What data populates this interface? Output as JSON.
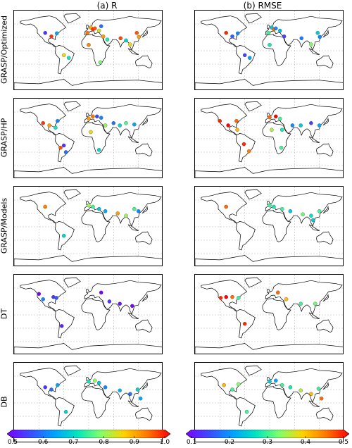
{
  "columns": [
    {
      "title": "(a) R"
    },
    {
      "title": "(b) RMSE"
    }
  ],
  "rows": [
    {
      "label": "GRASP/Optimized"
    },
    {
      "label": "GRASP/HP"
    },
    {
      "label": "GRASP/Models"
    },
    {
      "label": "DT"
    },
    {
      "label": "DB"
    }
  ],
  "colorbars": [
    {
      "name": "R",
      "ticks": [
        "0.5",
        "0.6",
        "0.7",
        "0.8",
        "0.9",
        "1.0"
      ],
      "min": 0.5,
      "max": 1.0,
      "colormap": [
        "#7a00ff",
        "#3b4cff",
        "#00a0ff",
        "#00e5c0",
        "#7fff6a",
        "#ffd200",
        "#ff7800",
        "#ff0000"
      ]
    },
    {
      "name": "RMSE",
      "ticks": [
        "0.1",
        "0.2",
        "0.3",
        "0.4",
        "0.5"
      ],
      "min": 0.1,
      "max": 0.5,
      "colormap": [
        "#7a00ff",
        "#3b4cff",
        "#00a0ff",
        "#00e5c0",
        "#7fff6a",
        "#ffd200",
        "#ff7800",
        "#ff0000"
      ]
    }
  ],
  "stations": {
    "optimized_R": [
      {
        "lon": -105,
        "lat": 40,
        "v": 0.55
      },
      {
        "lon": -90,
        "lat": 32,
        "v": 0.97
      },
      {
        "lon": -77,
        "lat": 39,
        "v": 0.65
      },
      {
        "lon": -48,
        "lat": -16,
        "v": 0.72
      },
      {
        "lon": -60,
        "lat": -10,
        "v": 0.85
      },
      {
        "lon": -3,
        "lat": 40,
        "v": 0.93
      },
      {
        "lon": 5,
        "lat": 52,
        "v": 0.88
      },
      {
        "lon": 10,
        "lat": 48,
        "v": 0.97
      },
      {
        "lon": 15,
        "lat": 50,
        "v": 0.95
      },
      {
        "lon": 25,
        "lat": 45,
        "v": 0.83
      },
      {
        "lon": 30,
        "lat": 55,
        "v": 0.6
      },
      {
        "lon": 35,
        "lat": 32,
        "v": 0.9
      },
      {
        "lon": 0,
        "lat": 13,
        "v": 0.92
      },
      {
        "lon": 45,
        "lat": 25,
        "v": 0.73
      },
      {
        "lon": 77,
        "lat": 28,
        "v": 0.96
      },
      {
        "lon": 90,
        "lat": 23,
        "v": 0.7
      },
      {
        "lon": 116,
        "lat": 40,
        "v": 0.95
      },
      {
        "lon": 121,
        "lat": 31,
        "v": 0.9
      },
      {
        "lon": 100,
        "lat": 14,
        "v": 0.85
      },
      {
        "lon": 28,
        "lat": -26,
        "v": 0.78
      }
    ],
    "optimized_RMSE": [
      {
        "lon": -105,
        "lat": 40,
        "v": 0.48
      },
      {
        "lon": -90,
        "lat": 32,
        "v": 0.17
      },
      {
        "lon": -77,
        "lat": 39,
        "v": 0.2
      },
      {
        "lon": -48,
        "lat": -16,
        "v": 0.22
      },
      {
        "lon": -60,
        "lat": -10,
        "v": 0.15
      },
      {
        "lon": -3,
        "lat": 40,
        "v": 0.3
      },
      {
        "lon": 5,
        "lat": 52,
        "v": 0.25
      },
      {
        "lon": 10,
        "lat": 48,
        "v": 0.45
      },
      {
        "lon": 15,
        "lat": 50,
        "v": 0.2
      },
      {
        "lon": 25,
        "lat": 45,
        "v": 0.24
      },
      {
        "lon": 35,
        "lat": 32,
        "v": 0.15
      },
      {
        "lon": 0,
        "lat": 13,
        "v": 0.28
      },
      {
        "lon": 77,
        "lat": 28,
        "v": 0.19
      },
      {
        "lon": 116,
        "lat": 40,
        "v": 0.25
      },
      {
        "lon": 121,
        "lat": 31,
        "v": 0.2
      },
      {
        "lon": 100,
        "lat": 14,
        "v": 0.33
      }
    ],
    "hp_R": [
      {
        "lon": -110,
        "lat": 35,
        "v": 0.97
      },
      {
        "lon": -95,
        "lat": 30,
        "v": 0.9
      },
      {
        "lon": -75,
        "lat": 40,
        "v": 0.62
      },
      {
        "lon": -80,
        "lat": 25,
        "v": 0.72
      },
      {
        "lon": -60,
        "lat": -15,
        "v": 0.55
      },
      {
        "lon": -55,
        "lat": -30,
        "v": 0.6
      },
      {
        "lon": -68,
        "lat": -20,
        "v": 0.95
      },
      {
        "lon": 0,
        "lat": 45,
        "v": 0.9
      },
      {
        "lon": 10,
        "lat": 50,
        "v": 0.93
      },
      {
        "lon": 20,
        "lat": 50,
        "v": 0.57
      },
      {
        "lon": 30,
        "lat": 47,
        "v": 0.62
      },
      {
        "lon": 5,
        "lat": 15,
        "v": 0.85
      },
      {
        "lon": 40,
        "lat": 30,
        "v": 0.8
      },
      {
        "lon": 60,
        "lat": 35,
        "v": 0.6
      },
      {
        "lon": 75,
        "lat": 30,
        "v": 0.7
      },
      {
        "lon": 90,
        "lat": 35,
        "v": 0.76
      },
      {
        "lon": 110,
        "lat": 32,
        "v": 0.65
      },
      {
        "lon": 25,
        "lat": -25,
        "v": 0.7
      }
    ],
    "hp_RMSE": [
      {
        "lon": -120,
        "lat": 40,
        "v": 0.48
      },
      {
        "lon": -100,
        "lat": 30,
        "v": 0.5
      },
      {
        "lon": -80,
        "lat": 40,
        "v": 0.45
      },
      {
        "lon": -78,
        "lat": 20,
        "v": 0.4
      },
      {
        "lon": -62,
        "lat": -12,
        "v": 0.48
      },
      {
        "lon": -50,
        "lat": -28,
        "v": 0.44
      },
      {
        "lon": 0,
        "lat": 48,
        "v": 0.45
      },
      {
        "lon": 15,
        "lat": 50,
        "v": 0.5
      },
      {
        "lon": 25,
        "lat": 45,
        "v": 0.3
      },
      {
        "lon": 5,
        "lat": 20,
        "v": 0.35
      },
      {
        "lon": 30,
        "lat": 20,
        "v": 0.28
      },
      {
        "lon": 55,
        "lat": 30,
        "v": 0.2
      },
      {
        "lon": 75,
        "lat": 30,
        "v": 0.25
      },
      {
        "lon": 100,
        "lat": 35,
        "v": 0.15
      },
      {
        "lon": 120,
        "lat": 30,
        "v": 0.22
      },
      {
        "lon": 28,
        "lat": -20,
        "v": 0.3
      }
    ],
    "models_R": [
      {
        "lon": -105,
        "lat": 45,
        "v": 0.92
      },
      {
        "lon": -60,
        "lat": -20,
        "v": 0.7
      },
      {
        "lon": 0,
        "lat": 48,
        "v": 0.8
      },
      {
        "lon": 10,
        "lat": 45,
        "v": 0.75
      },
      {
        "lon": 25,
        "lat": 40,
        "v": 0.68
      },
      {
        "lon": 40,
        "lat": 35,
        "v": 0.65
      },
      {
        "lon": 70,
        "lat": 30,
        "v": 0.9
      },
      {
        "lon": 90,
        "lat": 25,
        "v": 0.8
      },
      {
        "lon": 110,
        "lat": 40,
        "v": 0.75
      },
      {
        "lon": 120,
        "lat": 35,
        "v": 0.62
      }
    ],
    "models_RMSE": [
      {
        "lon": -105,
        "lat": 45,
        "v": 0.45
      },
      {
        "lon": 0,
        "lat": 48,
        "v": 0.3
      },
      {
        "lon": 10,
        "lat": 45,
        "v": 0.28
      },
      {
        "lon": 30,
        "lat": 40,
        "v": 0.3
      },
      {
        "lon": 50,
        "lat": 35,
        "v": 0.25
      },
      {
        "lon": 80,
        "lat": 28,
        "v": 0.32
      },
      {
        "lon": 100,
        "lat": 25,
        "v": 0.27
      },
      {
        "lon": 120,
        "lat": 35,
        "v": 0.3
      },
      {
        "lon": 105,
        "lat": 15,
        "v": 0.25
      }
    ],
    "dt_R": [
      {
        "lon": -120,
        "lat": 47,
        "v": 0.5
      },
      {
        "lon": -110,
        "lat": 35,
        "v": 0.62
      },
      {
        "lon": -85,
        "lat": 40,
        "v": 0.55
      },
      {
        "lon": -78,
        "lat": 38,
        "v": 0.58
      },
      {
        "lon": -65,
        "lat": -25,
        "v": 0.53
      },
      {
        "lon": 30,
        "lat": 50,
        "v": 0.5
      },
      {
        "lon": 50,
        "lat": 30,
        "v": 0.55
      },
      {
        "lon": 75,
        "lat": 25,
        "v": 0.52
      },
      {
        "lon": 105,
        "lat": 20,
        "v": 0.5
      }
    ],
    "dt_RMSE": [
      {
        "lon": -118,
        "lat": 38,
        "v": 0.48
      },
      {
        "lon": -105,
        "lat": 40,
        "v": 0.5
      },
      {
        "lon": -90,
        "lat": 40,
        "v": 0.45
      },
      {
        "lon": -75,
        "lat": 38,
        "v": 0.3
      },
      {
        "lon": -60,
        "lat": -20,
        "v": 0.48
      },
      {
        "lon": 20,
        "lat": 50,
        "v": 0.45
      },
      {
        "lon": 40,
        "lat": 35,
        "v": 0.4
      },
      {
        "lon": 75,
        "lat": 25,
        "v": 0.3
      },
      {
        "lon": 110,
        "lat": 25,
        "v": 0.32
      }
    ],
    "db_R": [
      {
        "lon": -105,
        "lat": 35,
        "v": 0.55
      },
      {
        "lon": -90,
        "lat": 30,
        "v": 0.6
      },
      {
        "lon": -75,
        "lat": 40,
        "v": 0.65
      },
      {
        "lon": -55,
        "lat": -20,
        "v": 0.7
      },
      {
        "lon": 0,
        "lat": 48,
        "v": 0.72
      },
      {
        "lon": 15,
        "lat": 50,
        "v": 0.8
      },
      {
        "lon": 25,
        "lat": 45,
        "v": 0.68
      },
      {
        "lon": 40,
        "lat": 35,
        "v": 0.62
      },
      {
        "lon": 75,
        "lat": 28,
        "v": 0.67
      },
      {
        "lon": 100,
        "lat": 20,
        "v": 0.6
      },
      {
        "lon": 118,
        "lat": 30,
        "v": 0.7
      },
      {
        "lon": 125,
        "lat": 10,
        "v": 0.65
      }
    ],
    "db_RMSE": [
      {
        "lon": -110,
        "lat": 40,
        "v": 0.4
      },
      {
        "lon": -90,
        "lat": 30,
        "v": 0.3
      },
      {
        "lon": -75,
        "lat": 42,
        "v": 0.33
      },
      {
        "lon": -55,
        "lat": -20,
        "v": 0.3
      },
      {
        "lon": 0,
        "lat": 48,
        "v": 0.25
      },
      {
        "lon": 15,
        "lat": 50,
        "v": 0.22
      },
      {
        "lon": 30,
        "lat": 40,
        "v": 0.3
      },
      {
        "lon": 50,
        "lat": 35,
        "v": 0.28
      },
      {
        "lon": 75,
        "lat": 28,
        "v": 0.35
      },
      {
        "lon": 100,
        "lat": 20,
        "v": 0.4
      },
      {
        "lon": 118,
        "lat": 32,
        "v": 0.3
      },
      {
        "lon": 125,
        "lat": 10,
        "v": 0.45
      }
    ]
  }
}
